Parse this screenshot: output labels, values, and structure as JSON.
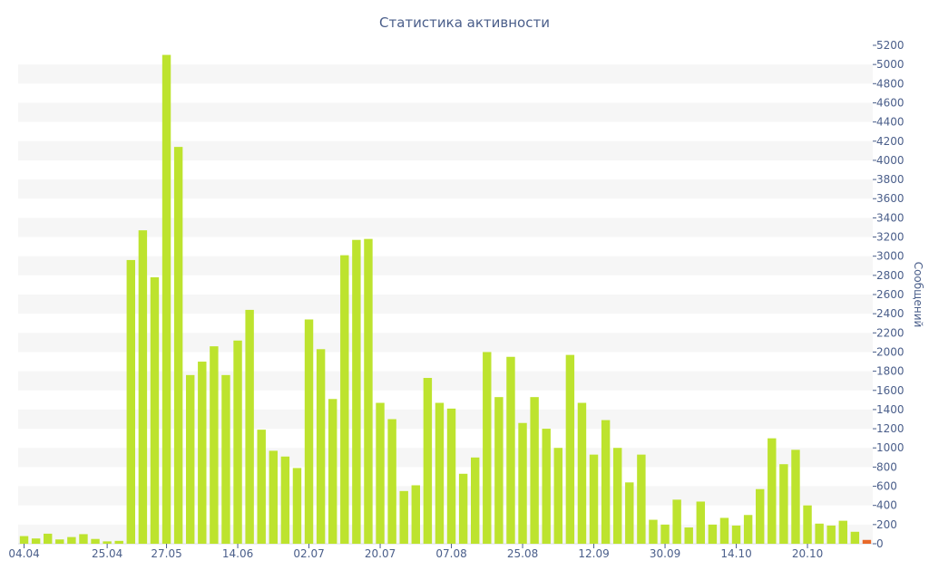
{
  "chart_data": {
    "type": "bar",
    "title": "Статистика активности",
    "ylabel": "Сообщений",
    "ylim": [
      0,
      5200
    ],
    "y_tick_step": 200,
    "grid": "horizontal alternating bands",
    "y_axis_side": "right",
    "colors": {
      "bar": "#bde32e",
      "last_bar": "#e8692a",
      "band": "#f6f6f6",
      "text": "#4a5e8a"
    },
    "x_tick_labels": [
      {
        "label": "04.04",
        "index": 0
      },
      {
        "label": "25.04",
        "index": 7
      },
      {
        "label": "27.05",
        "index": 12
      },
      {
        "label": "14.06",
        "index": 18
      },
      {
        "label": "02.07",
        "index": 24
      },
      {
        "label": "20.07",
        "index": 30
      },
      {
        "label": "07.08",
        "index": 36
      },
      {
        "label": "25.08",
        "index": 42
      },
      {
        "label": "12.09",
        "index": 48
      },
      {
        "label": "30.09",
        "index": 54
      },
      {
        "label": "14.10",
        "index": 60
      },
      {
        "label": "20.10",
        "index": 66
      }
    ],
    "values": [
      80,
      55,
      105,
      45,
      70,
      100,
      50,
      25,
      30,
      2960,
      3270,
      2780,
      5100,
      4140,
      1760,
      1900,
      2060,
      1760,
      2120,
      2440,
      1190,
      970,
      910,
      790,
      2340,
      2030,
      1510,
      3010,
      3170,
      3180,
      1470,
      1300,
      550,
      610,
      1730,
      1470,
      1410,
      730,
      900,
      2000,
      1530,
      1950,
      1260,
      1530,
      1200,
      1000,
      1970,
      1470,
      930,
      1290,
      1000,
      640,
      930,
      250,
      200,
      460,
      170,
      440,
      200,
      270,
      190,
      300,
      570,
      1100,
      830,
      980,
      400,
      210,
      190,
      240,
      125,
      40
    ]
  }
}
